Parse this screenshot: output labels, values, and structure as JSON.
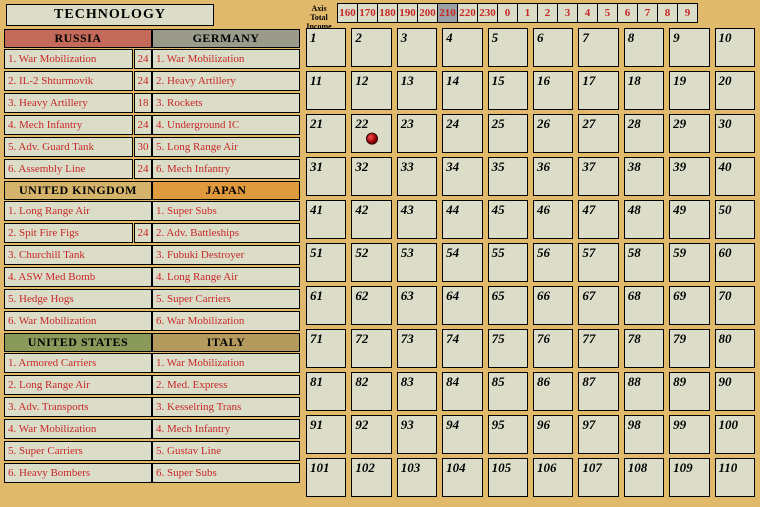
{
  "board": {
    "background_color": "#e0b96a",
    "cell_bg": "#dcddc8"
  },
  "title": "TECHNOLOGY",
  "income": {
    "label_line1": "Axis",
    "label_line2": "Total",
    "label_line3": "Income",
    "values": [
      "160",
      "170",
      "180",
      "190",
      "200",
      "210",
      "220",
      "230",
      "0",
      "1",
      "2",
      "3",
      "4",
      "5",
      "6",
      "7",
      "8",
      "9"
    ],
    "value_color": "#c62828",
    "selected_index": 5
  },
  "nations_left": [
    {
      "name": "RUSSIA",
      "header_bg": "#c46a5b",
      "text_color": "#c62828",
      "techs": [
        {
          "label": "1. War Mobilization",
          "val": "24"
        },
        {
          "label": "2. IL-2 Shturmovik",
          "val": "24"
        },
        {
          "label": "3. Heavy Artillery",
          "val": "18"
        },
        {
          "label": "4. Mech Infantry",
          "val": "24"
        },
        {
          "label": "5. Adv. Guard Tank",
          "val": "30"
        },
        {
          "label": "6. Assembly Line",
          "val": "24"
        }
      ]
    },
    {
      "name": "UNITED KINGDOM",
      "header_bg": "#d4b36a",
      "text_color": "#c62828",
      "techs": [
        {
          "label": "1. Long Range Air"
        },
        {
          "label": "2. Spit Fire Figs",
          "val": "24"
        },
        {
          "label": "3. Churchill Tank"
        },
        {
          "label": "4. ASW Med Bomb"
        },
        {
          "label": "5. Hedge Hogs"
        },
        {
          "label": "6. War Mobilization"
        }
      ]
    },
    {
      "name": "UNITED STATES",
      "header_bg": "#8a9a5b",
      "text_color": "#c62828",
      "techs": [
        {
          "label": "1. Armored Carriers"
        },
        {
          "label": "2. Long Range Air"
        },
        {
          "label": "3. Adv. Transports"
        },
        {
          "label": "4. War Mobilization"
        },
        {
          "label": "5. Super Carriers"
        },
        {
          "label": "6. Heavy Bombers"
        }
      ]
    }
  ],
  "nations_right": [
    {
      "name": "GERMANY",
      "header_bg": "#9b9b8c",
      "text_color": "#c62828",
      "techs": [
        {
          "label": "1. War Mobilization"
        },
        {
          "label": "2. Heavy Artillery"
        },
        {
          "label": "3. Rockets"
        },
        {
          "label": "4. Underground IC"
        },
        {
          "label": "5. Long Range Air"
        },
        {
          "label": "6. Mech Infantry"
        }
      ]
    },
    {
      "name": "JAPAN",
      "header_bg": "#e09a3e",
      "text_color": "#c62828",
      "techs": [
        {
          "label": "1. Super Subs"
        },
        {
          "label": "2. Adv. Battleships"
        },
        {
          "label": "3. Fubuki Destroyer"
        },
        {
          "label": "4. Long Range Air"
        },
        {
          "label": "5. Super Carriers"
        },
        {
          "label": "6. War Mobilization"
        }
      ]
    },
    {
      "name": "ITALY",
      "header_bg": "#b59a5e",
      "text_color": "#c62828",
      "techs": [
        {
          "label": "1. War Mobilization"
        },
        {
          "label": "2. Med. Express"
        },
        {
          "label": "3. Kesselring Trans"
        },
        {
          "label": "4. Mech Infantry"
        },
        {
          "label": "5. Gustav Line"
        },
        {
          "label": "6. Super Subs"
        }
      ]
    }
  ],
  "grid": {
    "rows": 11,
    "cols": 10,
    "marker_cell": 22,
    "marker_color": "#b01818"
  }
}
